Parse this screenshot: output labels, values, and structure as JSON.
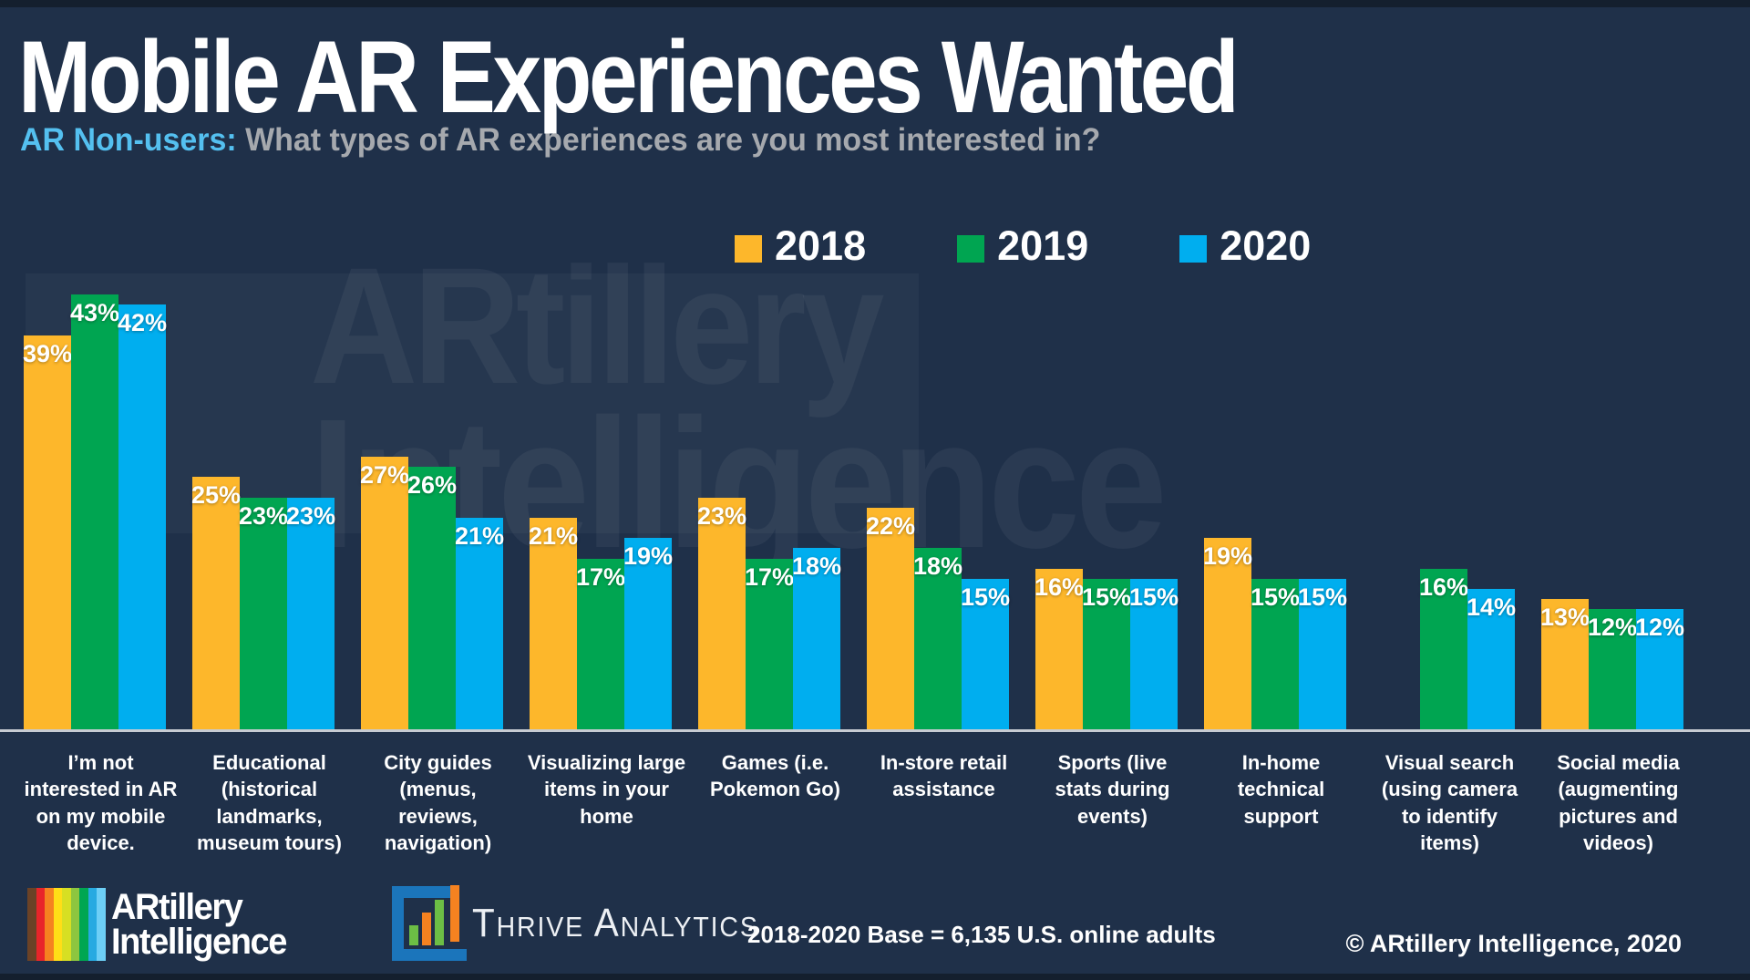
{
  "header": {
    "title": "Mobile AR Experiences Wanted",
    "subtitle_highlight": "AR Non-users:",
    "subtitle_rest": " What types of AR experiences are you most interested in?"
  },
  "watermark": {
    "line1": "ARtillery",
    "line2": "Intelligence"
  },
  "chart_data": {
    "type": "bar",
    "categories": [
      "I’m not\ninterested in AR\non my mobile\ndevice.",
      "Educational\n(historical\nlandmarks,\nmuseum tours)",
      "City guides\n(menus,\nreviews,\nnavigation)",
      "Visualizing large\nitems in your\nhome",
      "Games (i.e.\nPokemon Go)",
      "In-store retail\nassistance",
      "Sports (live\nstats during\nevents)",
      "In-home\ntechnical\nsupport",
      "Visual search\n(using camera\nto identify\nitems)",
      "Social media\n(augmenting\npictures and\nvideos)"
    ],
    "series": [
      {
        "name": "2018",
        "color": "#FDB72B",
        "values": [
          39,
          25,
          27,
          21,
          23,
          22,
          16,
          19,
          null,
          13
        ]
      },
      {
        "name": "2019",
        "color": "#00A551",
        "values": [
          43,
          23,
          26,
          17,
          17,
          18,
          15,
          15,
          16,
          12
        ]
      },
      {
        "name": "2020",
        "color": "#00AEEF",
        "values": [
          42,
          23,
          21,
          19,
          18,
          15,
          15,
          15,
          14,
          12
        ]
      }
    ],
    "value_suffix": "%",
    "ylim": [
      0,
      45
    ],
    "grid": false,
    "legend_position": "top-right",
    "value_labels": "inside-top"
  },
  "footer": {
    "artillery_logo": {
      "line1": "ARtillery",
      "line2": "Intelligence",
      "stripe_colors": [
        "#6B4226",
        "#E8252A",
        "#F58220",
        "#FFDE17",
        "#D7DF23",
        "#8DC63F",
        "#00A651",
        "#27AAE1",
        "#6DCFF6"
      ]
    },
    "thrive_logo": {
      "name": "Thrive Analytics",
      "frame_color": "#1B75BB",
      "bar_colors": [
        "#6CBE45",
        "#F58220",
        "#6CBE45",
        "#F58220"
      ]
    },
    "base_note": "2018-2020 Base = 6,135 U.S. online adults",
    "copyright": "© ARtillery Intelligence, 2020"
  },
  "colors": {
    "background": "#1F3049",
    "edge_strip": "#141F2E",
    "subtitle_highlight": "#54C0F0",
    "subtitle_text": "#A6A9AE",
    "baseline": "#C6CBD2"
  }
}
